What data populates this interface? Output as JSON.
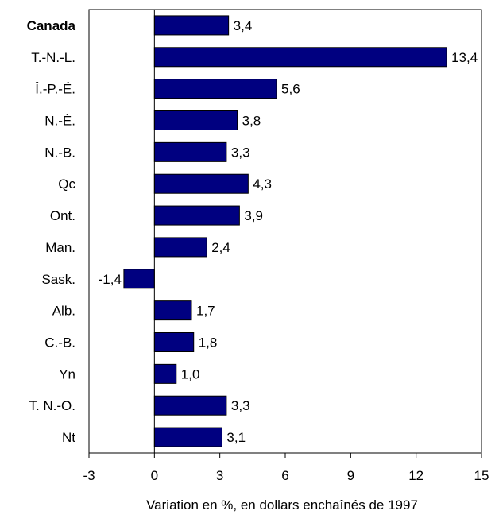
{
  "chart_data": {
    "type": "bar",
    "orientation": "horizontal",
    "categories": [
      "Canada",
      "T.-N.-L.",
      "Î.-P.-É.",
      "N.-É.",
      "N.-B.",
      "Qc",
      "Ont.",
      "Man.",
      "Sask.",
      "Alb.",
      "C.-B.",
      "Yn",
      "T. N.-O.",
      "Nt"
    ],
    "bold_categories": [
      "Canada"
    ],
    "values": [
      3.4,
      13.4,
      5.6,
      3.8,
      3.3,
      4.3,
      3.9,
      2.4,
      -1.4,
      1.7,
      1.8,
      1.0,
      3.3,
      3.1
    ],
    "data_labels": [
      "3,4",
      "13,4",
      "5,6",
      "3,8",
      "3,3",
      "4,3",
      "3,9",
      "2,4",
      "-1,4",
      "1,7",
      "1,8",
      "1,0",
      "3,3",
      "3,1"
    ],
    "xlim": [
      -3,
      15
    ],
    "xticks": [
      -3,
      0,
      3,
      6,
      9,
      12,
      15
    ],
    "xtick_labels": [
      "-3",
      "0",
      "3",
      "6",
      "9",
      "12",
      "15"
    ],
    "xlabel": "Variation en %, en dollars enchaînés de 1997",
    "ylabel": "",
    "title": "",
    "grid": false,
    "legend": "none",
    "colors": {
      "bar_fill": "#000080",
      "bar_stroke": "#000000",
      "axis": "#000000"
    }
  }
}
